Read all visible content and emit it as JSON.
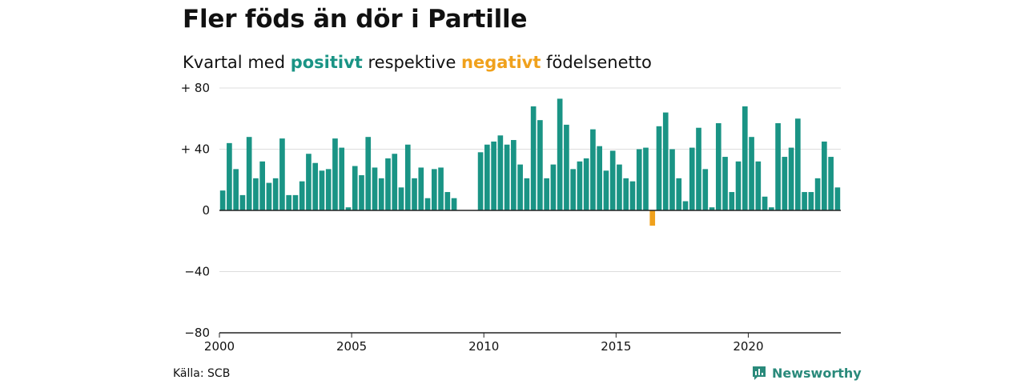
{
  "chart_data": {
    "type": "bar",
    "title": "Fler föds än dör i Partille",
    "subtitle": {
      "before": "Kvartal med ",
      "positive": "positivt",
      "middle": " respektive ",
      "negative": "negativt",
      "after": " födelsenetto"
    },
    "xlabel": "",
    "ylabel": "",
    "ylim": [
      -80,
      80
    ],
    "yticks": [
      {
        "value": 80,
        "label": "+ 80"
      },
      {
        "value": 40,
        "label": "+ 40"
      },
      {
        "value": 0,
        "label": "0"
      },
      {
        "value": -40,
        "label": "−40"
      },
      {
        "value": -80,
        "label": "−80"
      }
    ],
    "xticks": [
      "2000",
      "2005",
      "2010",
      "2015",
      "2020"
    ],
    "grid": true,
    "colors": {
      "positive": "#1a9485",
      "negative": "#f0a11c",
      "grid": "#dddddd",
      "axis": "#222222"
    },
    "start_year": 2000,
    "values": [
      13,
      44,
      27,
      10,
      48,
      21,
      32,
      18,
      21,
      47,
      10,
      10,
      19,
      37,
      31,
      26,
      27,
      47,
      41,
      2,
      29,
      23,
      48,
      28,
      21,
      34,
      37,
      15,
      43,
      21,
      28,
      8,
      27,
      28,
      12,
      8,
      0,
      0,
      0,
      38,
      43,
      45,
      49,
      43,
      46,
      30,
      21,
      68,
      59,
      21,
      30,
      73,
      56,
      27,
      32,
      34,
      53,
      42,
      26,
      39,
      30,
      21,
      19,
      40,
      41,
      -10,
      55,
      64,
      40,
      21,
      6,
      41,
      54,
      27,
      2,
      57,
      35,
      12,
      32,
      68,
      48,
      32,
      9,
      2,
      57,
      35,
      41,
      60,
      12,
      12,
      21,
      45,
      35,
      15
    ]
  },
  "source": "Källa: SCB",
  "logo": {
    "name": "Newsworthy",
    "icon": "newsworthy-bar-icon"
  }
}
